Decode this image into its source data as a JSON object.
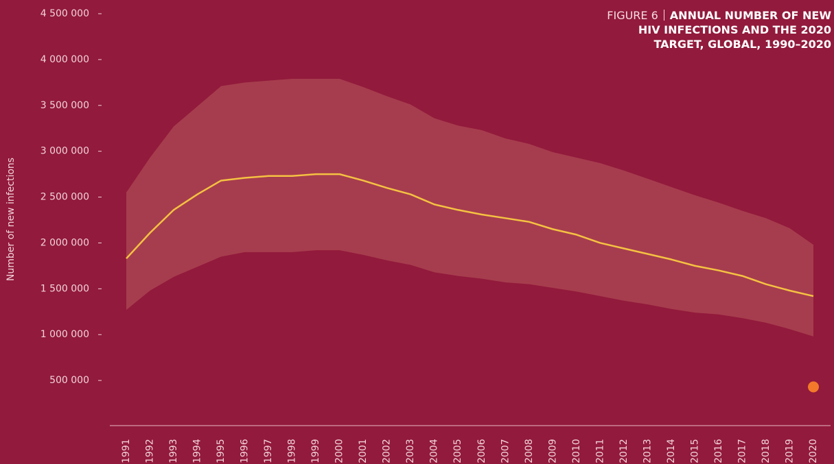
{
  "chart_data": {
    "type": "line",
    "figure_label": "FIGURE 6",
    "title": "ANNUAL NUMBER OF NEW HIV INFECTIONS AND THE 2020 TARGET, GLOBAL, 1990–2020",
    "y_label": "Number of new infections",
    "categories": [
      "1991",
      "1992",
      "1993",
      "1994",
      "1995",
      "1996",
      "1997",
      "1998",
      "1999",
      "2000",
      "2001",
      "2002",
      "2003",
      "2004",
      "2005",
      "2006",
      "2007",
      "2008",
      "2009",
      "2010",
      "2011",
      "2012",
      "2013",
      "2014",
      "2015",
      "2016",
      "2017",
      "2018",
      "2019",
      "2020"
    ],
    "band": {
      "color": "#a63d4e",
      "upper": [
        2550000,
        2930000,
        3270000,
        3490000,
        3710000,
        3750000,
        3770000,
        3790000,
        3790000,
        3790000,
        3700000,
        3600000,
        3510000,
        3360000,
        3280000,
        3230000,
        3140000,
        3080000,
        2990000,
        2930000,
        2870000,
        2790000,
        2700000,
        2610000,
        2520000,
        2440000,
        2350000,
        2270000,
        2160000,
        1980000
      ],
      "lower": [
        1270000,
        1480000,
        1630000,
        1740000,
        1850000,
        1900000,
        1900000,
        1900000,
        1920000,
        1920000,
        1870000,
        1810000,
        1760000,
        1680000,
        1640000,
        1610000,
        1570000,
        1550000,
        1510000,
        1470000,
        1420000,
        1370000,
        1330000,
        1280000,
        1240000,
        1220000,
        1180000,
        1130000,
        1060000,
        980000
      ]
    },
    "series": [
      {
        "color": "#f5c242",
        "values": [
          1830000,
          2110000,
          2360000,
          2530000,
          2680000,
          2710000,
          2730000,
          2730000,
          2750000,
          2750000,
          2680000,
          2600000,
          2530000,
          2420000,
          2360000,
          2310000,
          2270000,
          2230000,
          2150000,
          2090000,
          2000000,
          1940000,
          1880000,
          1820000,
          1750000,
          1700000,
          1640000,
          1550000,
          1480000,
          1420000
        ]
      },
      {
        "color": "#f37a2a",
        "marker": "dot",
        "values": [
          null,
          null,
          null,
          null,
          null,
          null,
          null,
          null,
          null,
          null,
          null,
          null,
          null,
          null,
          null,
          null,
          null,
          null,
          null,
          null,
          null,
          null,
          null,
          null,
          null,
          null,
          null,
          null,
          null,
          430000
        ]
      }
    ],
    "ylim": [
      0,
      4500000
    ],
    "yticks": [
      {
        "value": 500000,
        "label": "500 000"
      },
      {
        "value": 1000000,
        "label": "1 000 000"
      },
      {
        "value": 1500000,
        "label": "1 500 000"
      },
      {
        "value": 2000000,
        "label": "2 000 000"
      },
      {
        "value": 2500000,
        "label": "2 500 000"
      },
      {
        "value": 3000000,
        "label": "3 000 000"
      },
      {
        "value": 3500000,
        "label": "3 500 000"
      },
      {
        "value": 4000000,
        "label": "4 000 000"
      },
      {
        "value": 4500000,
        "label": "4 500 000"
      }
    ]
  }
}
